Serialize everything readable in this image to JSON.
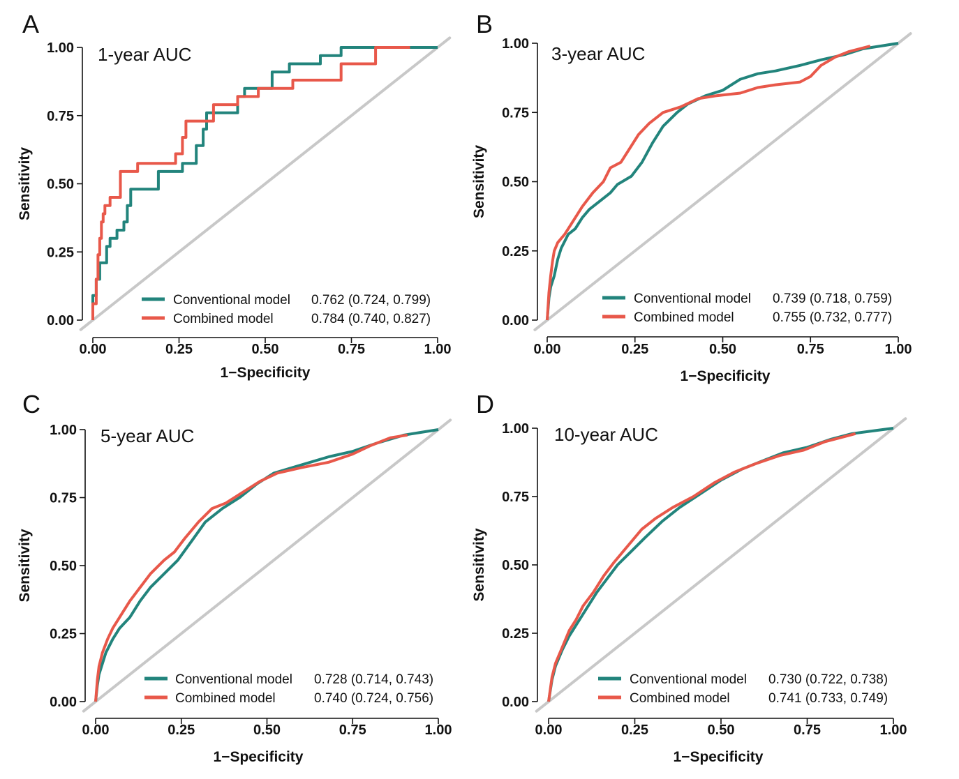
{
  "colors": {
    "conventional": "#22847c",
    "combined": "#e8584a",
    "diagonal": "#c8c8c8"
  },
  "chart_data": [
    {
      "type": "line",
      "panel_letter": "A",
      "title": "1-year AUC",
      "xlabel": "1−Specificity",
      "ylabel": "Sensitivity",
      "xlim": [
        0,
        1
      ],
      "ylim": [
        0,
        1
      ],
      "x_ticks": [
        "0.00",
        "0.25",
        "0.50",
        "0.75",
        "1.00"
      ],
      "y_ticks": [
        "0.00",
        "0.25",
        "0.50",
        "0.75",
        "1.00"
      ],
      "grid": false,
      "legend_position": "bottom-right",
      "series": [
        {
          "name": "Conventional model",
          "auc": "0.762 (0.724, 0.799)",
          "color": "#22847c",
          "points": [
            [
              0,
              0
            ],
            [
              0,
              0.09
            ],
            [
              0.01,
              0.09
            ],
            [
              0.01,
              0.15
            ],
            [
              0.02,
              0.15
            ],
            [
              0.02,
              0.21
            ],
            [
              0.04,
              0.21
            ],
            [
              0.04,
              0.27
            ],
            [
              0.05,
              0.27
            ],
            [
              0.05,
              0.3
            ],
            [
              0.07,
              0.3
            ],
            [
              0.07,
              0.33
            ],
            [
              0.09,
              0.33
            ],
            [
              0.09,
              0.36
            ],
            [
              0.1,
              0.36
            ],
            [
              0.1,
              0.42
            ],
            [
              0.11,
              0.42
            ],
            [
              0.11,
              0.48
            ],
            [
              0.19,
              0.48
            ],
            [
              0.19,
              0.545
            ],
            [
              0.26,
              0.545
            ],
            [
              0.26,
              0.575
            ],
            [
              0.3,
              0.575
            ],
            [
              0.3,
              0.64
            ],
            [
              0.32,
              0.64
            ],
            [
              0.32,
              0.7
            ],
            [
              0.33,
              0.7
            ],
            [
              0.33,
              0.76
            ],
            [
              0.42,
              0.76
            ],
            [
              0.42,
              0.82
            ],
            [
              0.44,
              0.82
            ],
            [
              0.44,
              0.85
            ],
            [
              0.52,
              0.85
            ],
            [
              0.52,
              0.91
            ],
            [
              0.57,
              0.91
            ],
            [
              0.57,
              0.94
            ],
            [
              0.66,
              0.94
            ],
            [
              0.66,
              0.97
            ],
            [
              0.72,
              0.97
            ],
            [
              0.72,
              1.0
            ],
            [
              1.0,
              1.0
            ]
          ]
        },
        {
          "name": "Combined model",
          "auc": "0.784 (0.740, 0.827)",
          "color": "#e8584a",
          "points": [
            [
              0,
              0
            ],
            [
              0,
              0.06
            ],
            [
              0.01,
              0.06
            ],
            [
              0.01,
              0.15
            ],
            [
              0.015,
              0.15
            ],
            [
              0.015,
              0.24
            ],
            [
              0.02,
              0.24
            ],
            [
              0.02,
              0.3
            ],
            [
              0.025,
              0.3
            ],
            [
              0.025,
              0.36
            ],
            [
              0.03,
              0.36
            ],
            [
              0.03,
              0.39
            ],
            [
              0.035,
              0.39
            ],
            [
              0.035,
              0.42
            ],
            [
              0.05,
              0.42
            ],
            [
              0.05,
              0.45
            ],
            [
              0.08,
              0.45
            ],
            [
              0.08,
              0.545
            ],
            [
              0.13,
              0.545
            ],
            [
              0.13,
              0.575
            ],
            [
              0.24,
              0.575
            ],
            [
              0.24,
              0.61
            ],
            [
              0.26,
              0.61
            ],
            [
              0.26,
              0.67
            ],
            [
              0.27,
              0.67
            ],
            [
              0.27,
              0.73
            ],
            [
              0.35,
              0.73
            ],
            [
              0.35,
              0.79
            ],
            [
              0.42,
              0.79
            ],
            [
              0.42,
              0.82
            ],
            [
              0.48,
              0.82
            ],
            [
              0.48,
              0.85
            ],
            [
              0.58,
              0.85
            ],
            [
              0.58,
              0.88
            ],
            [
              0.72,
              0.88
            ],
            [
              0.72,
              0.94
            ],
            [
              0.82,
              0.94
            ],
            [
              0.82,
              1.0
            ],
            [
              0.92,
              1.0
            ]
          ]
        }
      ]
    },
    {
      "type": "line",
      "panel_letter": "B",
      "title": "3-year AUC",
      "xlabel": "1−Specificity",
      "ylabel": "Sensitivity",
      "xlim": [
        0,
        1
      ],
      "ylim": [
        0,
        1
      ],
      "x_ticks": [
        "0.00",
        "0.25",
        "0.50",
        "0.75",
        "1.00"
      ],
      "y_ticks": [
        "0.00",
        "0.25",
        "0.50",
        "0.75",
        "1.00"
      ],
      "grid": false,
      "legend_position": "bottom-right",
      "series": [
        {
          "name": "Conventional model",
          "auc": "0.739 (0.718, 0.759)",
          "color": "#22847c",
          "points": [
            [
              0,
              0
            ],
            [
              0.005,
              0.08
            ],
            [
              0.01,
              0.12
            ],
            [
              0.02,
              0.16
            ],
            [
              0.03,
              0.22
            ],
            [
              0.04,
              0.26
            ],
            [
              0.06,
              0.31
            ],
            [
              0.08,
              0.33
            ],
            [
              0.1,
              0.37
            ],
            [
              0.12,
              0.4
            ],
            [
              0.15,
              0.43
            ],
            [
              0.18,
              0.46
            ],
            [
              0.2,
              0.49
            ],
            [
              0.24,
              0.52
            ],
            [
              0.27,
              0.57
            ],
            [
              0.3,
              0.64
            ],
            [
              0.33,
              0.7
            ],
            [
              0.37,
              0.75
            ],
            [
              0.4,
              0.78
            ],
            [
              0.45,
              0.81
            ],
            [
              0.5,
              0.83
            ],
            [
              0.55,
              0.87
            ],
            [
              0.6,
              0.89
            ],
            [
              0.65,
              0.9
            ],
            [
              0.72,
              0.92
            ],
            [
              0.78,
              0.94
            ],
            [
              0.85,
              0.96
            ],
            [
              0.9,
              0.98
            ],
            [
              0.95,
              0.99
            ],
            [
              1.0,
              1.0
            ]
          ]
        },
        {
          "name": "Combined model",
          "auc": "0.755 (0.732, 0.777)",
          "color": "#e8584a",
          "points": [
            [
              0,
              0
            ],
            [
              0.005,
              0.1
            ],
            [
              0.01,
              0.16
            ],
            [
              0.015,
              0.21
            ],
            [
              0.02,
              0.25
            ],
            [
              0.03,
              0.28
            ],
            [
              0.05,
              0.31
            ],
            [
              0.07,
              0.35
            ],
            [
              0.1,
              0.41
            ],
            [
              0.13,
              0.46
            ],
            [
              0.16,
              0.5
            ],
            [
              0.18,
              0.55
            ],
            [
              0.21,
              0.57
            ],
            [
              0.24,
              0.63
            ],
            [
              0.26,
              0.67
            ],
            [
              0.29,
              0.71
            ],
            [
              0.33,
              0.75
            ],
            [
              0.38,
              0.77
            ],
            [
              0.43,
              0.8
            ],
            [
              0.48,
              0.81
            ],
            [
              0.55,
              0.82
            ],
            [
              0.6,
              0.84
            ],
            [
              0.65,
              0.85
            ],
            [
              0.72,
              0.86
            ],
            [
              0.75,
              0.88
            ],
            [
              0.78,
              0.92
            ],
            [
              0.82,
              0.95
            ],
            [
              0.86,
              0.97
            ],
            [
              0.92,
              0.99
            ]
          ]
        }
      ]
    },
    {
      "type": "line",
      "panel_letter": "C",
      "title": "5-year AUC",
      "xlabel": "1−Specificity",
      "ylabel": "Sensitivity",
      "xlim": [
        0,
        1
      ],
      "ylim": [
        0,
        1
      ],
      "x_ticks": [
        "0.00",
        "0.25",
        "0.50",
        "0.75",
        "1.00"
      ],
      "y_ticks": [
        "0.00",
        "0.25",
        "0.50",
        "0.75",
        "1.00"
      ],
      "grid": false,
      "legend_position": "bottom-right",
      "series": [
        {
          "name": "Conventional model",
          "auc": "0.728 (0.714, 0.743)",
          "color": "#22847c",
          "points": [
            [
              0,
              0
            ],
            [
              0.005,
              0.06
            ],
            [
              0.01,
              0.1
            ],
            [
              0.02,
              0.14
            ],
            [
              0.03,
              0.18
            ],
            [
              0.05,
              0.23
            ],
            [
              0.07,
              0.27
            ],
            [
              0.1,
              0.31
            ],
            [
              0.13,
              0.37
            ],
            [
              0.16,
              0.42
            ],
            [
              0.2,
              0.47
            ],
            [
              0.24,
              0.52
            ],
            [
              0.28,
              0.59
            ],
            [
              0.32,
              0.66
            ],
            [
              0.37,
              0.71
            ],
            [
              0.42,
              0.75
            ],
            [
              0.47,
              0.8
            ],
            [
              0.52,
              0.84
            ],
            [
              0.6,
              0.87
            ],
            [
              0.68,
              0.9
            ],
            [
              0.75,
              0.92
            ],
            [
              0.82,
              0.95
            ],
            [
              0.9,
              0.98
            ],
            [
              0.95,
              0.99
            ],
            [
              1.0,
              1.0
            ]
          ]
        },
        {
          "name": "Combined model",
          "auc": "0.740 (0.724, 0.756)",
          "color": "#e8584a",
          "points": [
            [
              0,
              0
            ],
            [
              0.005,
              0.08
            ],
            [
              0.01,
              0.13
            ],
            [
              0.02,
              0.18
            ],
            [
              0.035,
              0.23
            ],
            [
              0.05,
              0.27
            ],
            [
              0.07,
              0.31
            ],
            [
              0.1,
              0.37
            ],
            [
              0.13,
              0.42
            ],
            [
              0.16,
              0.47
            ],
            [
              0.2,
              0.52
            ],
            [
              0.23,
              0.55
            ],
            [
              0.26,
              0.6
            ],
            [
              0.3,
              0.66
            ],
            [
              0.34,
              0.71
            ],
            [
              0.38,
              0.73
            ],
            [
              0.43,
              0.77
            ],
            [
              0.48,
              0.81
            ],
            [
              0.53,
              0.84
            ],
            [
              0.6,
              0.86
            ],
            [
              0.68,
              0.88
            ],
            [
              0.75,
              0.91
            ],
            [
              0.8,
              0.94
            ],
            [
              0.86,
              0.97
            ],
            [
              0.91,
              0.98
            ]
          ]
        }
      ]
    },
    {
      "type": "line",
      "panel_letter": "D",
      "title": "10-year AUC",
      "xlabel": "1−Specificity",
      "ylabel": "Sensitivity",
      "xlim": [
        0,
        1
      ],
      "ylim": [
        0,
        1
      ],
      "x_ticks": [
        "0.00",
        "0.25",
        "0.50",
        "0.75",
        "1.00"
      ],
      "y_ticks": [
        "0.00",
        "0.25",
        "0.50",
        "0.75",
        "1.00"
      ],
      "grid": false,
      "legend_position": "bottom-right",
      "series": [
        {
          "name": "Conventional model",
          "auc": "0.730 (0.722, 0.738)",
          "color": "#22847c",
          "points": [
            [
              0,
              0
            ],
            [
              0.01,
              0.08
            ],
            [
              0.02,
              0.13
            ],
            [
              0.04,
              0.19
            ],
            [
              0.06,
              0.24
            ],
            [
              0.08,
              0.28
            ],
            [
              0.11,
              0.34
            ],
            [
              0.14,
              0.4
            ],
            [
              0.17,
              0.45
            ],
            [
              0.2,
              0.5
            ],
            [
              0.24,
              0.55
            ],
            [
              0.28,
              0.6
            ],
            [
              0.33,
              0.66
            ],
            [
              0.38,
              0.71
            ],
            [
              0.44,
              0.76
            ],
            [
              0.5,
              0.81
            ],
            [
              0.56,
              0.85
            ],
            [
              0.62,
              0.88
            ],
            [
              0.68,
              0.91
            ],
            [
              0.75,
              0.93
            ],
            [
              0.82,
              0.96
            ],
            [
              0.88,
              0.98
            ],
            [
              0.94,
              0.99
            ],
            [
              1.0,
              1.0
            ]
          ]
        },
        {
          "name": "Combined model",
          "auc": "0.741 (0.733, 0.749)",
          "color": "#e8584a",
          "points": [
            [
              0,
              0
            ],
            [
              0.01,
              0.09
            ],
            [
              0.02,
              0.14
            ],
            [
              0.04,
              0.2
            ],
            [
              0.06,
              0.26
            ],
            [
              0.08,
              0.3
            ],
            [
              0.1,
              0.35
            ],
            [
              0.13,
              0.4
            ],
            [
              0.16,
              0.46
            ],
            [
              0.19,
              0.51
            ],
            [
              0.23,
              0.57
            ],
            [
              0.27,
              0.63
            ],
            [
              0.31,
              0.67
            ],
            [
              0.36,
              0.71
            ],
            [
              0.42,
              0.75
            ],
            [
              0.48,
              0.8
            ],
            [
              0.54,
              0.84
            ],
            [
              0.6,
              0.87
            ],
            [
              0.67,
              0.9
            ],
            [
              0.74,
              0.92
            ],
            [
              0.8,
              0.95
            ],
            [
              0.86,
              0.97
            ],
            [
              0.89,
              0.98
            ]
          ]
        }
      ]
    }
  ]
}
